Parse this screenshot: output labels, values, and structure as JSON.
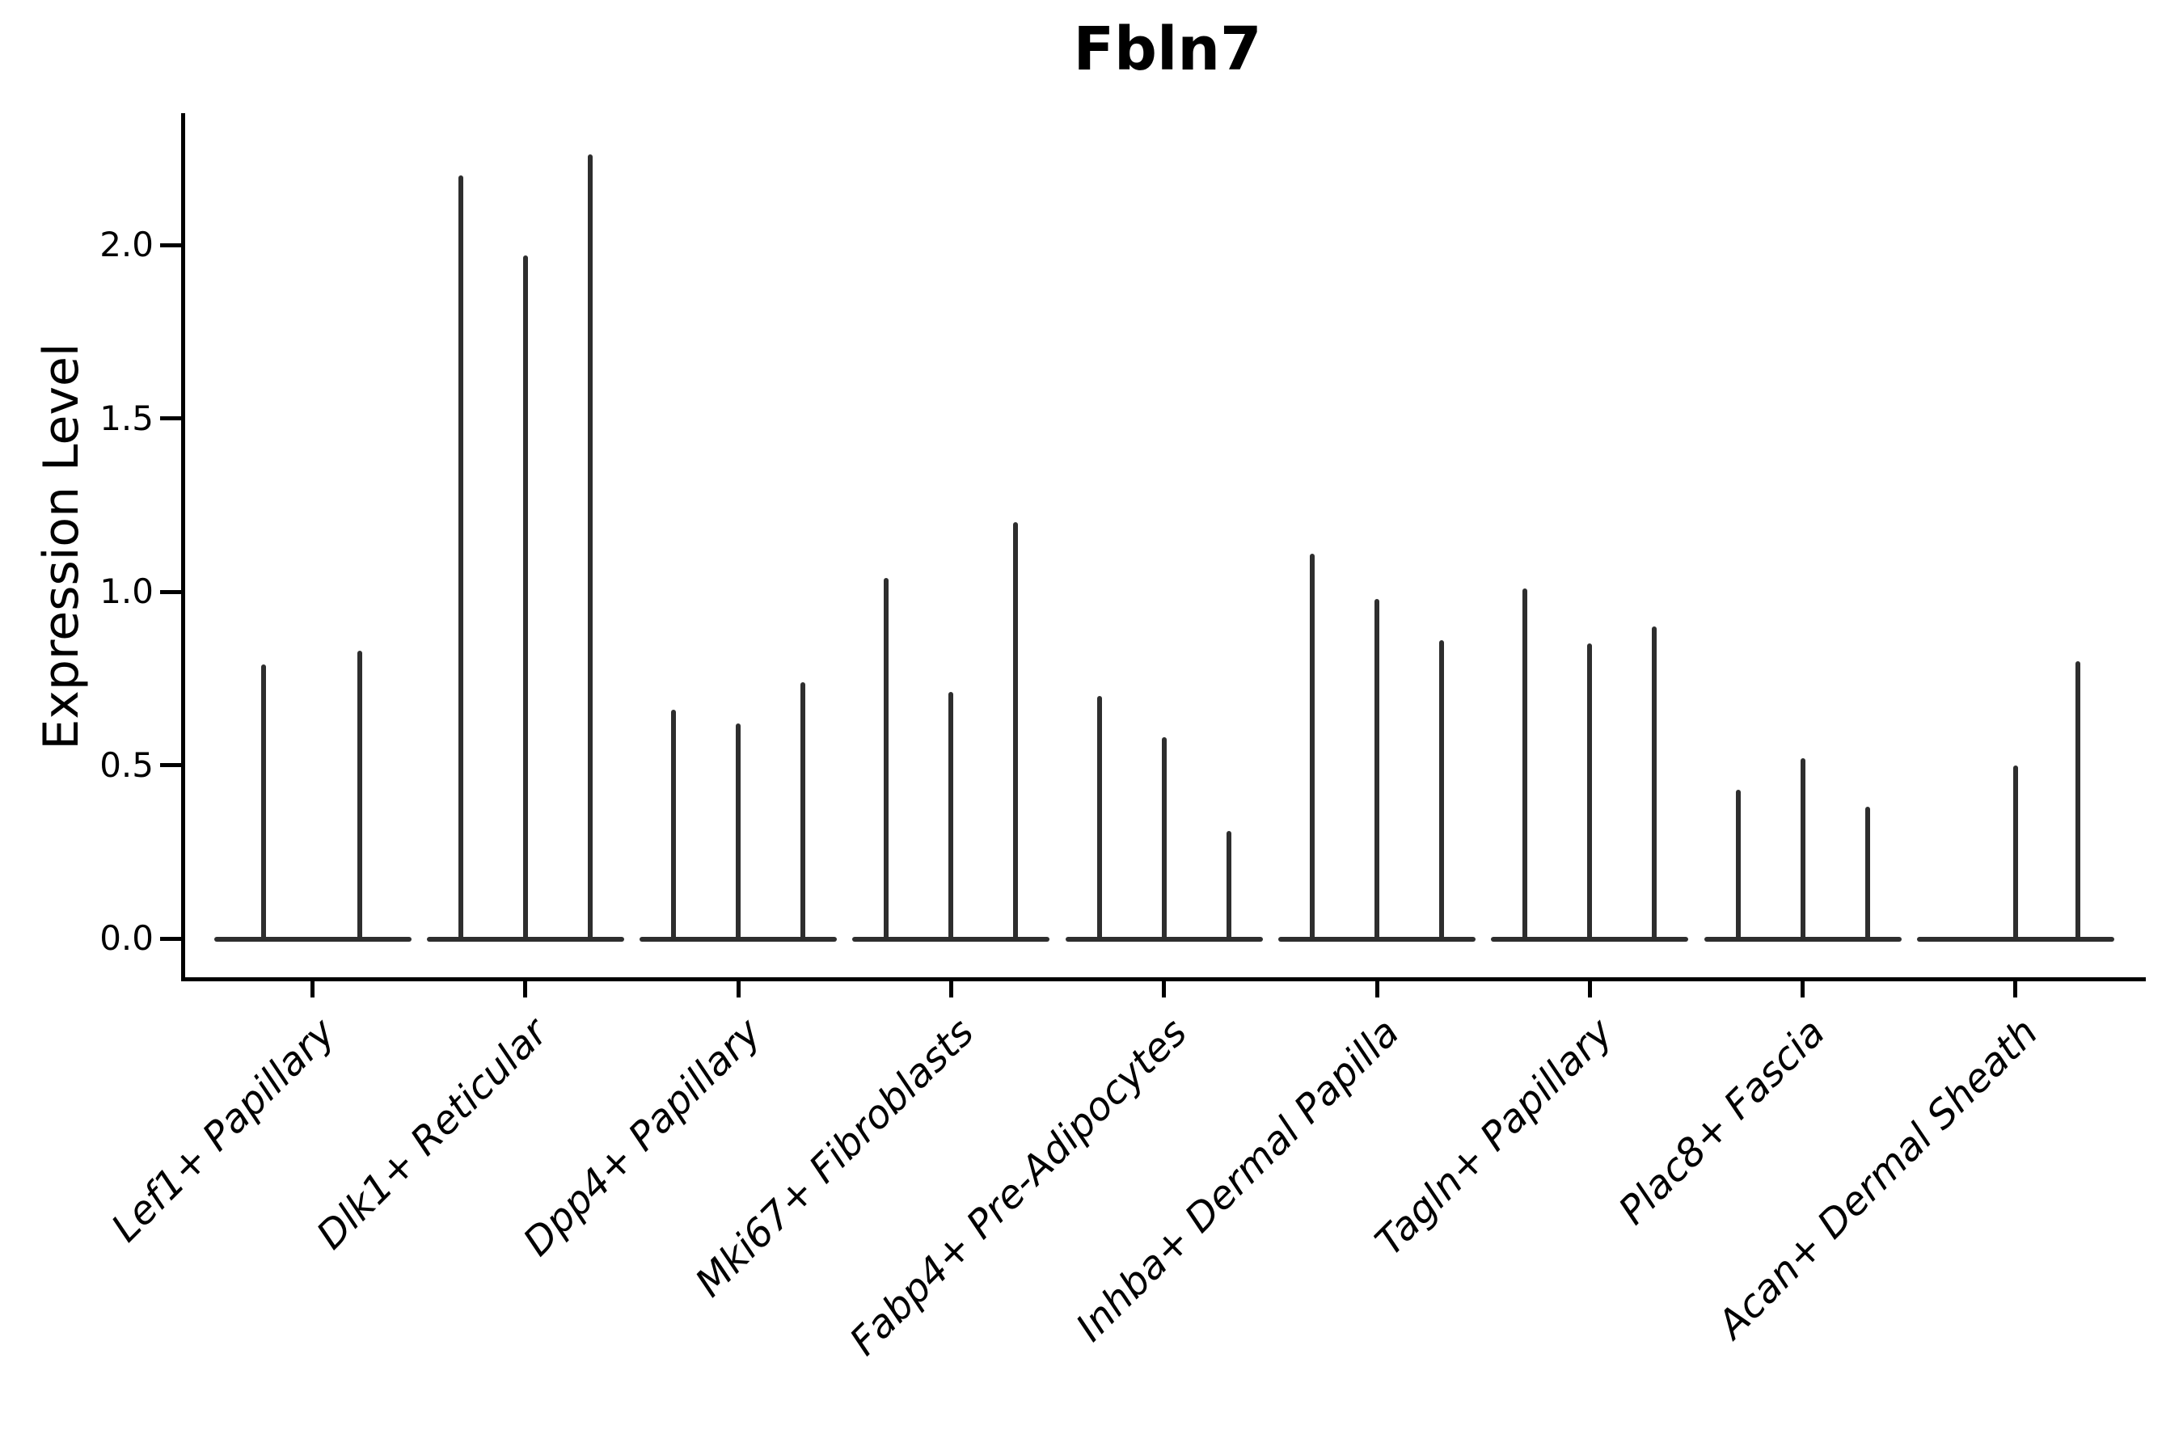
{
  "title": "Fbln7",
  "y_axis": {
    "label": "Expression Level",
    "tick_labels": [
      "2.0",
      "1.5",
      "1.0",
      "0.5",
      "0.0"
    ],
    "tick_values": [
      2.0,
      1.5,
      1.0,
      0.5,
      0.0
    ]
  },
  "x_axis": {
    "tick_labels": [
      "Lef1+ Papillary",
      "Dlk1+ Reticular",
      "Dpp4+ Papillary",
      "Mki67+ Fibroblasts",
      "Fabp4+ Pre-Adipocytes",
      "Inhba+ Dermal Papilla",
      "Tagln+ Papillary",
      "Plac8+ Fascia",
      "Acan+ Dermal Sheath"
    ]
  },
  "colors": {
    "ink": "#000000",
    "violin": "#2e2e2e",
    "background": "#ffffff"
  },
  "chart_data": {
    "type": "violin",
    "title": "Fbln7",
    "xlabel": "",
    "ylabel": "Expression Level",
    "ylim": [
      -0.06,
      2.35
    ],
    "yticks": [
      0.0,
      0.5,
      1.0,
      1.5,
      2.0
    ],
    "grid": false,
    "legend_position": "none",
    "description": "Violin plot of Fbln7 expression per fibroblast cluster; each cluster shows 2-3 extremely thin violins: nearly all density sits flat at 0 with a narrow spike rising to each violin's maximum expression value.",
    "categories": [
      {
        "label": "Lef1+ Papillary",
        "spikes": [
          {
            "dx": -61,
            "value": 0.79
          },
          {
            "dx": 58,
            "value": 0.83
          }
        ]
      },
      {
        "label": "Dlk1+ Reticular",
        "spikes": [
          {
            "dx": -80,
            "value": 2.2
          },
          {
            "dx": 0,
            "value": 1.97
          },
          {
            "dx": 80,
            "value": 2.26
          }
        ]
      },
      {
        "label": "Dpp4+ Papillary",
        "spikes": [
          {
            "dx": -80,
            "value": 0.66
          },
          {
            "dx": 0,
            "value": 0.62
          },
          {
            "dx": 80,
            "value": 0.74
          }
        ]
      },
      {
        "label": "Mki67+ Fibroblasts",
        "spikes": [
          {
            "dx": -80,
            "value": 1.04
          },
          {
            "dx": 0,
            "value": 0.71
          },
          {
            "dx": 80,
            "value": 1.2
          }
        ]
      },
      {
        "label": "Fabp4+ Pre-Adipocytes",
        "spikes": [
          {
            "dx": -80,
            "value": 0.7
          },
          {
            "dx": 0,
            "value": 0.58
          },
          {
            "dx": 80,
            "value": 0.31
          }
        ]
      },
      {
        "label": "Inhba+ Dermal Papilla",
        "spikes": [
          {
            "dx": -80,
            "value": 1.11
          },
          {
            "dx": 0,
            "value": 0.98
          },
          {
            "dx": 80,
            "value": 0.86
          }
        ]
      },
      {
        "label": "Tagln+ Papillary",
        "spikes": [
          {
            "dx": -80,
            "value": 1.01
          },
          {
            "dx": 0,
            "value": 0.85
          },
          {
            "dx": 80,
            "value": 0.9
          }
        ]
      },
      {
        "label": "Plac8+ Fascia",
        "spikes": [
          {
            "dx": -80,
            "value": 0.43
          },
          {
            "dx": 0,
            "value": 0.52
          },
          {
            "dx": 80,
            "value": 0.38
          }
        ]
      },
      {
        "label": "Acan+ Dermal Sheath",
        "spikes": [
          {
            "dx": 0,
            "value": 0.5
          },
          {
            "dx": 77,
            "value": 0.8
          }
        ]
      }
    ]
  }
}
